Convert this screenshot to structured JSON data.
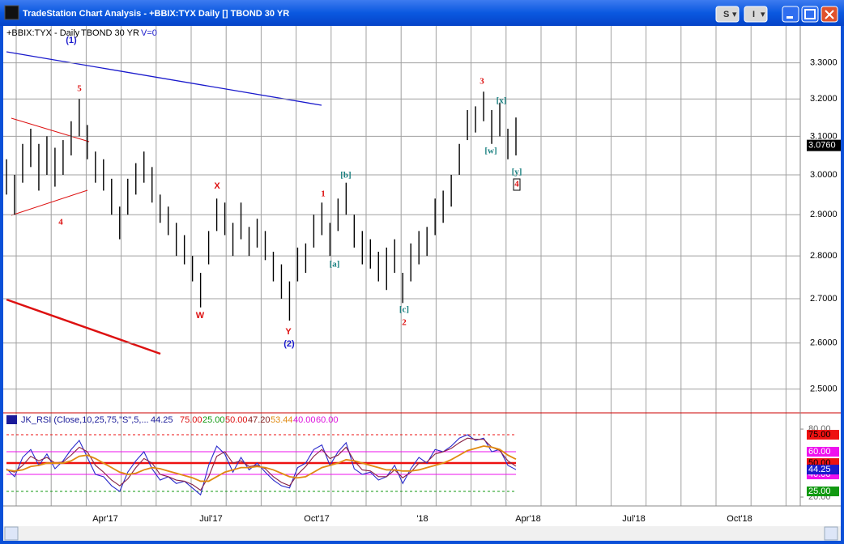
{
  "window": {
    "title": "TradeStation Chart Analysis - +BBIX:TYX Daily [] TBOND 30 YR",
    "buttons": [
      "S",
      "I"
    ]
  },
  "chart_data": [
    {
      "type": "hilo",
      "symbol": "+BBIX:TYX - Daily",
      "description": "TBOND 30 YR",
      "volume": "V=0",
      "color": "#000000",
      "log_scale": true,
      "grid": true,
      "ylim": [
        2.45,
        3.41
      ],
      "yticks": [
        {
          "value": 3.3,
          "label": "3.3000"
        },
        {
          "value": 3.2,
          "label": "3.2000"
        },
        {
          "value": 3.1,
          "label": "3.1000"
        },
        {
          "value": 3.0,
          "label": "3.0000"
        },
        {
          "value": 2.9,
          "label": "2.9000"
        },
        {
          "value": 2.8,
          "label": "2.8000"
        },
        {
          "value": 2.7,
          "label": "2.7000"
        },
        {
          "value": 2.6,
          "label": "2.6000"
        },
        {
          "value": 2.5,
          "label": "2.5000"
        }
      ],
      "last_price": {
        "value": 3.076,
        "label": "3.0760"
      },
      "x_axis_labels": [
        "Apr'17",
        "Jul'17",
        "Oct'17",
        "'18",
        "Apr'18",
        "Jul'18",
        "Oct'18"
      ],
      "high": [
        3.04,
        3.0,
        3.08,
        3.12,
        3.08,
        3.1,
        3.07,
        3.09,
        3.14,
        3.2,
        3.13,
        3.06,
        3.04,
        2.99,
        2.92,
        2.99,
        3.03,
        3.06,
        3.02,
        2.95,
        2.92,
        2.88,
        2.85,
        2.8,
        2.76,
        2.86,
        2.94,
        2.93,
        2.88,
        2.93,
        2.87,
        2.89,
        2.86,
        2.81,
        2.78,
        2.74,
        2.82,
        2.83,
        2.9,
        2.93,
        2.88,
        2.94,
        2.98,
        2.9,
        2.86,
        2.84,
        2.81,
        2.82,
        2.84,
        2.76,
        2.83,
        2.86,
        2.87,
        2.94,
        2.96,
        3.0,
        3.08,
        3.17,
        3.18,
        3.22,
        3.17,
        3.19,
        3.12,
        3.15
      ],
      "low": [
        2.95,
        2.9,
        2.98,
        3.02,
        2.96,
        3.0,
        2.97,
        3.0,
        3.05,
        3.1,
        3.04,
        2.98,
        2.96,
        2.9,
        2.84,
        2.9,
        2.95,
        2.98,
        2.93,
        2.88,
        2.85,
        2.8,
        2.78,
        2.74,
        2.68,
        2.78,
        2.86,
        2.85,
        2.8,
        2.84,
        2.8,
        2.82,
        2.79,
        2.74,
        2.7,
        2.65,
        2.74,
        2.76,
        2.82,
        2.85,
        2.8,
        2.86,
        2.9,
        2.82,
        2.78,
        2.77,
        2.74,
        2.72,
        2.76,
        2.69,
        2.74,
        2.78,
        2.8,
        2.85,
        2.88,
        2.92,
        3.0,
        3.09,
        3.11,
        3.14,
        3.08,
        3.1,
        3.04,
        3.05
      ],
      "annotations": [
        {
          "text": "(1)",
          "color": "#1a1acc"
        },
        {
          "text": "5",
          "color": "#dd1111"
        },
        {
          "text": "4",
          "color": "#dd1111"
        },
        {
          "text": "X",
          "color": "#dd1111"
        },
        {
          "text": "W",
          "color": "#dd1111"
        },
        {
          "text": "Y",
          "color": "#dd1111"
        },
        {
          "text": "(2)",
          "color": "#1a1acc"
        },
        {
          "text": "1",
          "color": "#dd1111"
        },
        {
          "text": "[b]",
          "color": "#1a8080"
        },
        {
          "text": "[a]",
          "color": "#1a8080"
        },
        {
          "text": "[c]",
          "color": "#1a8080"
        },
        {
          "text": "2",
          "color": "#dd1111"
        },
        {
          "text": "3",
          "color": "#dd1111"
        },
        {
          "text": "[x]",
          "color": "#1a8080"
        },
        {
          "text": "[w]",
          "color": "#1a8080"
        },
        {
          "text": "[y]",
          "color": "#1a8080"
        },
        {
          "text": "4",
          "color": "#dd1111",
          "boxed": true
        }
      ]
    },
    {
      "type": "line",
      "title": "JK_RSI (Close,10,25,75,\"S\",5,...",
      "readouts": [
        {
          "value": 44.25,
          "label": "44.25",
          "color": "#1a1a99"
        },
        {
          "value": 75,
          "label": "75.00",
          "color": "#dd1111"
        },
        {
          "value": 25,
          "label": "25.00",
          "color": "#119911"
        },
        {
          "value": 50,
          "label": "50.00",
          "color": "#dd1111"
        },
        {
          "value": 47.2,
          "label": "47.20",
          "color": "#882222"
        },
        {
          "value": 53.44,
          "label": "53.44",
          "color": "#e08a10"
        },
        {
          "value": 40,
          "label": "40.00",
          "color": "#dd11dd"
        },
        {
          "value": 60,
          "label": "60.00",
          "color": "#dd11dd"
        }
      ],
      "ylim": [
        14.3,
        92.9
      ],
      "yticks": [
        {
          "value": 80,
          "label": "80.00"
        },
        {
          "value": 20,
          "label": "20.00"
        }
      ],
      "levels": [
        {
          "value": 75,
          "label": "75.00",
          "color": "#ee1111",
          "style": "dashed"
        },
        {
          "value": 60,
          "label": "60.00",
          "color": "#ee11ee",
          "style": "solid"
        },
        {
          "value": 50,
          "label": "50.00",
          "color": "#ee1111",
          "style": "thick"
        },
        {
          "value": 40,
          "label": "40.00",
          "color": "#ee11ee",
          "style": "solid"
        },
        {
          "value": 25,
          "label": "25.00",
          "color": "#119911",
          "style": "dashed"
        }
      ],
      "series": [
        {
          "color": "#2a2acc",
          "values": [
            45,
            38,
            55,
            62,
            48,
            58,
            45,
            52,
            62,
            70,
            55,
            40,
            38,
            30,
            25,
            42,
            52,
            60,
            45,
            35,
            38,
            32,
            34,
            28,
            22,
            48,
            65,
            58,
            42,
            55,
            44,
            50,
            42,
            35,
            30,
            28,
            46,
            50,
            62,
            66,
            48,
            60,
            68,
            45,
            40,
            42,
            35,
            38,
            48,
            32,
            45,
            55,
            50,
            62,
            60,
            65,
            72,
            75,
            70,
            72,
            60,
            62,
            48,
            44.25
          ]
        },
        {
          "color": "#882244",
          "values": [
            44,
            42,
            48,
            56,
            52,
            55,
            50,
            51,
            57,
            64,
            60,
            48,
            42,
            35,
            30,
            36,
            46,
            54,
            50,
            40,
            38,
            35,
            34,
            31,
            26,
            38,
            56,
            60,
            50,
            52,
            47,
            48,
            45,
            38,
            33,
            30,
            40,
            47,
            56,
            62,
            54,
            57,
            64,
            52,
            44,
            43,
            38,
            38,
            44,
            37,
            42,
            50,
            51,
            58,
            60,
            63,
            68,
            72,
            71,
            71,
            64,
            61,
            52,
            47.2
          ]
        },
        {
          "color": "#e08a10",
          "values": [
            44,
            43,
            44,
            47,
            48,
            50,
            50,
            50,
            52,
            56,
            57,
            54,
            50,
            46,
            42,
            40,
            41,
            44,
            46,
            45,
            43,
            41,
            39,
            37,
            34,
            34,
            38,
            42,
            44,
            46,
            46,
            47,
            46,
            44,
            41,
            38,
            37,
            38,
            42,
            46,
            48,
            50,
            53,
            52,
            50,
            48,
            46,
            44,
            44,
            43,
            43,
            44,
            46,
            48,
            50,
            53,
            57,
            61,
            63,
            65,
            64,
            62,
            57,
            53.44
          ]
        }
      ]
    }
  ]
}
